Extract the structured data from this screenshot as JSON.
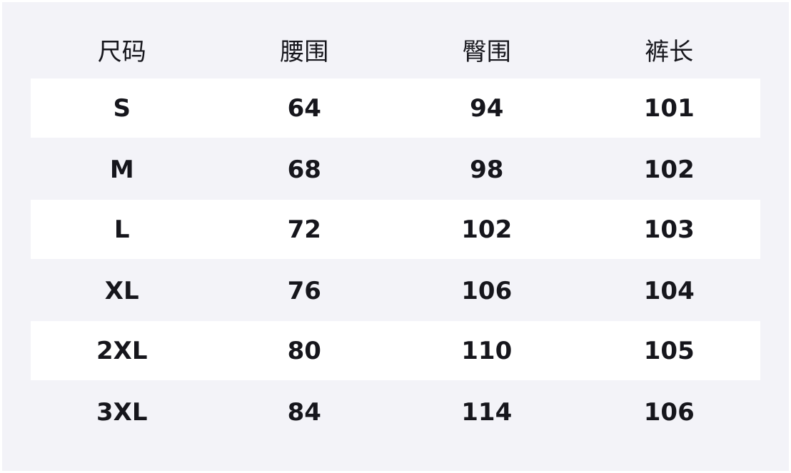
{
  "table": {
    "headers": [
      "尺码",
      "腰围",
      "臀围",
      "裤长"
    ],
    "rows": [
      [
        "S",
        "64",
        "94",
        "101"
      ],
      [
        "M",
        "68",
        "98",
        "102"
      ],
      [
        "L",
        "72",
        "102",
        "103"
      ],
      [
        "XL",
        "76",
        "106",
        "104"
      ],
      [
        "2XL",
        "80",
        "110",
        "105"
      ],
      [
        "3XL",
        "84",
        "114",
        "106"
      ]
    ]
  },
  "colors": {
    "background": "#f3f3f8",
    "stripe": "#ffffff",
    "text": "#16161c"
  }
}
